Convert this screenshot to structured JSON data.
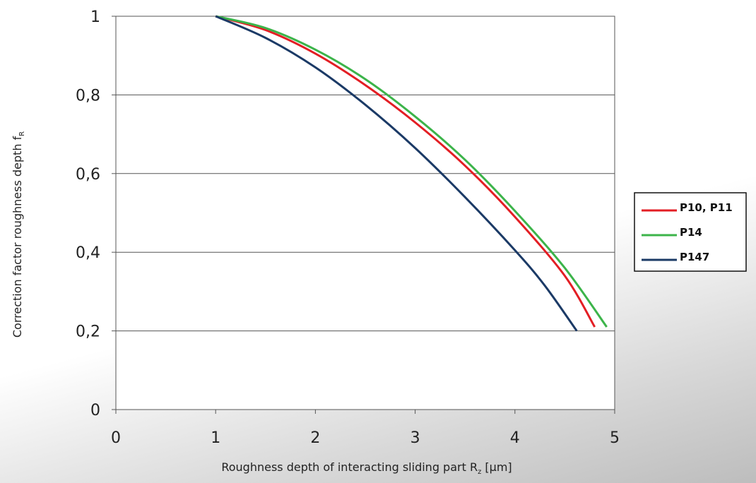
{
  "chart_data": {
    "type": "line",
    "xlabel": {
      "main": "Roughness depth of interacting sliding part R",
      "sub": "z",
      "unit": " [µm]"
    },
    "ylabel": {
      "main": "Correction factor roughness depth f",
      "sub": "R"
    },
    "xlim": [
      0,
      5
    ],
    "ylim": [
      0,
      1
    ],
    "x_ticks": [
      "0",
      "1",
      "2",
      "3",
      "4",
      "5"
    ],
    "y_ticks": [
      "0",
      "0,2",
      "0,4",
      "0,6",
      "0,8",
      "1"
    ],
    "grid": "horizontal",
    "legend_position": "right",
    "series": [
      {
        "name": "P10, P11",
        "color": "#e31e24",
        "points": [
          [
            1,
            1.0
          ],
          [
            1.5,
            0.965
          ],
          [
            2,
            0.905
          ],
          [
            2.5,
            0.825
          ],
          [
            3,
            0.73
          ],
          [
            3.5,
            0.62
          ],
          [
            4,
            0.49
          ],
          [
            4.5,
            0.34
          ],
          [
            4.8,
            0.21
          ]
        ]
      },
      {
        "name": "P14",
        "color": "#3cb44a",
        "points": [
          [
            1,
            1.0
          ],
          [
            1.5,
            0.97
          ],
          [
            2,
            0.915
          ],
          [
            2.5,
            0.84
          ],
          [
            3,
            0.745
          ],
          [
            3.5,
            0.635
          ],
          [
            4,
            0.505
          ],
          [
            4.5,
            0.36
          ],
          [
            4.92,
            0.21
          ]
        ]
      },
      {
        "name": "P147",
        "color": "#1b3a66",
        "points": [
          [
            1,
            1.0
          ],
          [
            1.5,
            0.945
          ],
          [
            2,
            0.87
          ],
          [
            2.5,
            0.775
          ],
          [
            3,
            0.665
          ],
          [
            3.5,
            0.54
          ],
          [
            4,
            0.405
          ],
          [
            4.3,
            0.315
          ],
          [
            4.62,
            0.2
          ]
        ]
      }
    ]
  }
}
